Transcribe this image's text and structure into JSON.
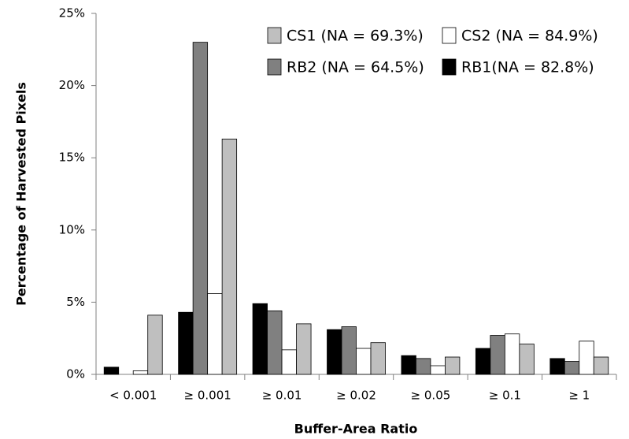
{
  "chart_data": {
    "type": "bar",
    "xlabel": "Buffer-Area Ratio",
    "ylabel": "Percentage of Harvested Pixels",
    "categories": [
      "< 0.001",
      "≥ 0.001",
      "≥ 0.01",
      "≥ 0.02",
      "≥ 0.05",
      "≥ 0.1",
      "≥ 1"
    ],
    "series": [
      {
        "name": "RB1(NA = 82.8%)",
        "color": "#000000",
        "values": [
          0.5,
          4.3,
          4.9,
          3.1,
          1.3,
          1.8,
          1.1
        ]
      },
      {
        "name": "RB2 (NA = 64.5%)",
        "color": "#808080",
        "values": [
          0,
          23.0,
          4.4,
          3.3,
          1.1,
          2.7,
          0.9
        ]
      },
      {
        "name": "CS2 (NA = 84.9%)",
        "color": "#ffffff",
        "values": [
          0.25,
          5.6,
          1.7,
          1.8,
          0.6,
          2.8,
          2.3
        ]
      },
      {
        "name": "CS1 (NA = 69.3%)",
        "color": "#bfbfbf",
        "values": [
          4.1,
          16.3,
          3.5,
          2.2,
          1.2,
          2.1,
          1.2
        ]
      }
    ],
    "ylim": [
      0,
      25
    ],
    "yticks": [
      {
        "value": 0,
        "label": "0%"
      },
      {
        "value": 5,
        "label": "5%"
      },
      {
        "value": 10,
        "label": "10%"
      },
      {
        "value": 15,
        "label": "15%"
      },
      {
        "value": 20,
        "label": "20%"
      },
      {
        "value": 25,
        "label": "25%"
      }
    ],
    "grid": false,
    "legend": "upper right"
  }
}
